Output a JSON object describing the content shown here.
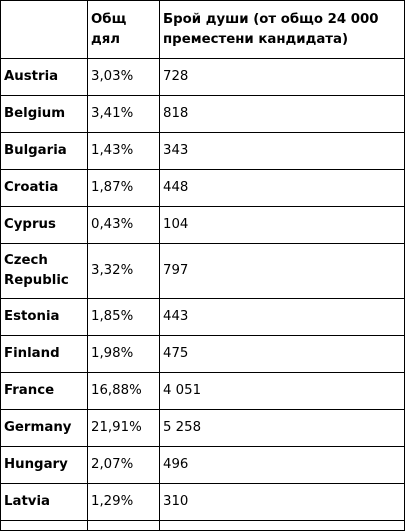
{
  "table": {
    "headers": [
      "",
      "Общ дял",
      "Брой души (от общо 24 000 преместени кандидата)"
    ],
    "rows": [
      {
        "country": "Austria",
        "share": "3,03%",
        "count": "728"
      },
      {
        "country": "Belgium",
        "share": "3,41%",
        "count": "818"
      },
      {
        "country": "Bulgaria",
        "share": "1,43%",
        "count": "343"
      },
      {
        "country": "Croatia",
        "share": "1,87%",
        "count": "448"
      },
      {
        "country": "Cyprus",
        "share": "0,43%",
        "count": "104"
      },
      {
        "country": "Czech Republic",
        "share": "3,32%",
        "count": "797"
      },
      {
        "country": "Estonia",
        "share": "1,85%",
        "count": "443"
      },
      {
        "country": "Finland",
        "share": "1,98%",
        "count": "475"
      },
      {
        "country": "France",
        "share": "16,88%",
        "count": "4 051"
      },
      {
        "country": "Germany",
        "share": "21,91%",
        "count": "5 258"
      },
      {
        "country": "Hungary",
        "share": "2,07%",
        "count": "496"
      },
      {
        "country": "Latvia",
        "share": "1,29%",
        "count": "310"
      }
    ]
  }
}
